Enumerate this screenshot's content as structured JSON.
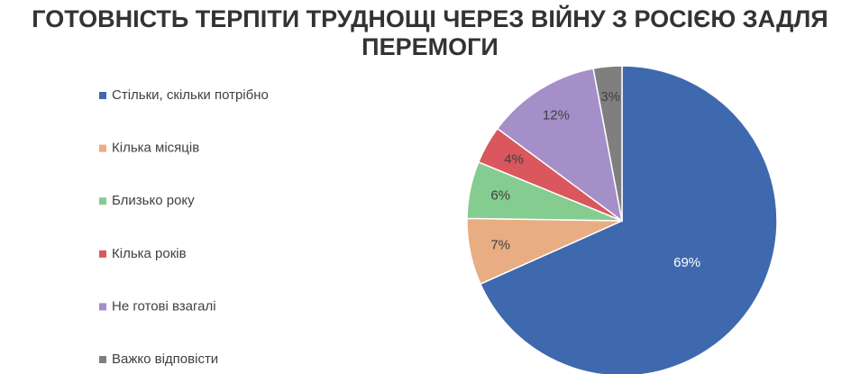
{
  "chart_data": {
    "type": "pie",
    "title": "ГОТОВНІСТЬ ТЕРПІТИ ТРУДНОЩІ ЧЕРЕЗ ВІЙНУ З РОСІЄЮ ЗАДЛЯ ПЕРЕМОГИ",
    "categories": [
      "Стільки, скільки потрібно",
      "Кілька місяців",
      "Близько року",
      "Кілька років",
      "Не готові взагалі",
      "Важко відповісти"
    ],
    "values": [
      69,
      7,
      6,
      4,
      12,
      3
    ],
    "value_labels": [
      "69%",
      "7%",
      "6%",
      "4%",
      "12%",
      "3%"
    ],
    "colors": [
      "#3f69ae",
      "#e8ad82",
      "#84cc8f",
      "#d9575d",
      "#a48fc8",
      "#7f7f7f"
    ],
    "legend": "left"
  }
}
